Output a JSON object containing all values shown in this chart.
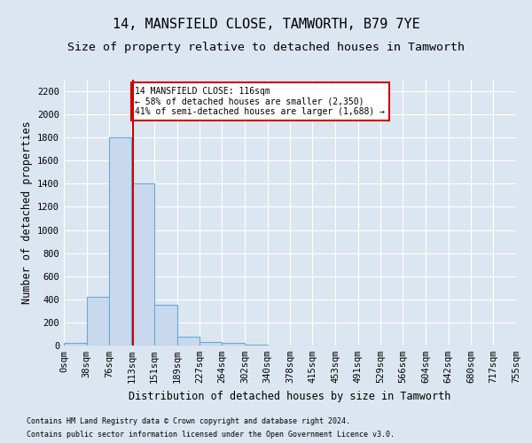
{
  "title": "14, MANSFIELD CLOSE, TAMWORTH, B79 7YE",
  "subtitle": "Size of property relative to detached houses in Tamworth",
  "xlabel": "Distribution of detached houses by size in Tamworth",
  "ylabel": "Number of detached properties",
  "footnote1": "Contains HM Land Registry data © Crown copyright and database right 2024.",
  "footnote2": "Contains public sector information licensed under the Open Government Licence v3.0.",
  "bin_edges": [
    0,
    38,
    76,
    113,
    151,
    189,
    227,
    264,
    302,
    340,
    378,
    415,
    453,
    491,
    529,
    566,
    604,
    642,
    680,
    717,
    755
  ],
  "bin_labels": [
    "0sqm",
    "38sqm",
    "76sqm",
    "113sqm",
    "151sqm",
    "189sqm",
    "227sqm",
    "264sqm",
    "302sqm",
    "340sqm",
    "378sqm",
    "415sqm",
    "453sqm",
    "491sqm",
    "529sqm",
    "566sqm",
    "604sqm",
    "642sqm",
    "680sqm",
    "717sqm",
    "755sqm"
  ],
  "bar_heights": [
    20,
    420,
    1800,
    1400,
    350,
    75,
    30,
    20,
    5,
    0,
    0,
    0,
    0,
    0,
    0,
    0,
    0,
    0,
    0,
    0
  ],
  "bar_color": "#c8d9ee",
  "bar_edge_color": "#6aaad4",
  "property_size": 116,
  "property_line_color": "#cc0000",
  "annotation_text": "14 MANSFIELD CLOSE: 116sqm\n← 58% of detached houses are smaller (2,350)\n41% of semi-detached houses are larger (1,688) →",
  "annotation_box_color": "#cc0000",
  "ylim": [
    0,
    2300
  ],
  "yticks": [
    0,
    200,
    400,
    600,
    800,
    1000,
    1200,
    1400,
    1600,
    1800,
    2000,
    2200
  ],
  "bg_color": "#dce6f0",
  "plot_bg_color": "#dce6f0",
  "grid_color": "#ffffff",
  "title_fontsize": 11,
  "subtitle_fontsize": 9.5,
  "label_fontsize": 8.5,
  "tick_fontsize": 7.5,
  "footnote_fontsize": 6
}
